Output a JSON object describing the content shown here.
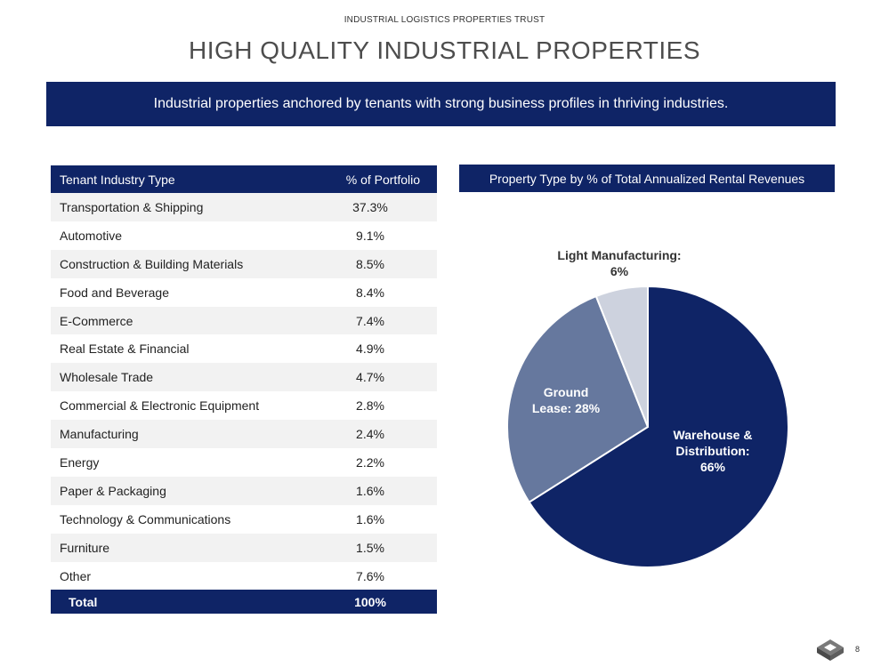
{
  "header": {
    "company": "INDUSTRIAL LOGISTICS PROPERTIES TRUST",
    "title": "HIGH QUALITY INDUSTRIAL PROPERTIES"
  },
  "banner": {
    "text": "Industrial properties anchored by tenants with strong business profiles in thriving industries."
  },
  "table": {
    "headers": {
      "industry": "Tenant Industry Type",
      "percent": "% of Portfolio"
    },
    "rows": [
      {
        "industry": "Transportation & Shipping",
        "percent": "37.3%"
      },
      {
        "industry": "Automotive",
        "percent": "9.1%"
      },
      {
        "industry": "Construction & Building Materials",
        "percent": "8.5%"
      },
      {
        "industry": "Food and Beverage",
        "percent": "8.4%"
      },
      {
        "industry": "E-Commerce",
        "percent": "7.4%"
      },
      {
        "industry": "Real Estate & Financial",
        "percent": "4.9%"
      },
      {
        "industry": "Wholesale Trade",
        "percent": "4.7%"
      },
      {
        "industry": "Commercial & Electronic Equipment",
        "percent": "2.8%"
      },
      {
        "industry": "Manufacturing",
        "percent": "2.4%"
      },
      {
        "industry": "Energy",
        "percent": "2.2%"
      },
      {
        "industry": "Paper & Packaging",
        "percent": "1.6%"
      },
      {
        "industry": "Technology & Communications",
        "percent": "1.6%"
      },
      {
        "industry": "Furniture",
        "percent": "1.5%"
      },
      {
        "industry": "Other",
        "percent": "7.6%"
      }
    ],
    "total": {
      "label": "Total",
      "percent": "100%"
    }
  },
  "chart_data": {
    "type": "pie",
    "title": "Property Type by % of Total Annualized Rental Revenues",
    "slices": [
      {
        "name": "Warehouse & Distribution",
        "value": 66,
        "label_lines": [
          "Warehouse &",
          "Distribution:",
          "66%"
        ],
        "color": "#0f2466",
        "label_color": "#ffffff"
      },
      {
        "name": "Ground Lease",
        "value": 28,
        "label_lines": [
          "Ground",
          "Lease: 28%"
        ],
        "color": "#66789e",
        "label_color": "#ffffff"
      },
      {
        "name": "Light Manufacturing",
        "value": 6,
        "label_lines": [
          "Light Manufacturing:",
          "6%"
        ],
        "color": "#cdd2de",
        "label_color": "#333333"
      }
    ]
  },
  "footer": {
    "page_number": "8"
  },
  "colors": {
    "navy": "#0f2466",
    "row_shade": "#f2f2f2"
  }
}
